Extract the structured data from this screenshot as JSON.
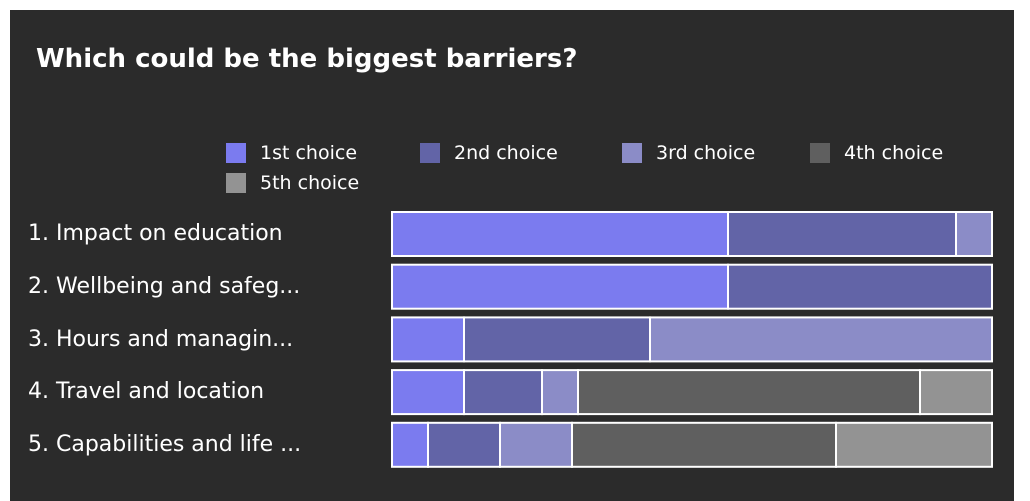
{
  "title": "Which could be the biggest barriers?",
  "colors": {
    "background": "#2b2b2b",
    "divider": "#ffffff"
  },
  "chart_data": {
    "type": "bar",
    "orientation": "horizontal",
    "stacking": "percent",
    "title": "Which could be the biggest barriers?",
    "legend_position": "top-right",
    "grid": false,
    "categories": [
      "1. Impact on education",
      "2. Wellbeing and safeg...",
      "3. Hours and managin...",
      "4. Travel and location",
      "5. Capabilities and life ..."
    ],
    "series": [
      {
        "name": "1st choice",
        "color": "#7b7bef",
        "values": [
          56,
          56,
          12,
          12,
          6
        ]
      },
      {
        "name": "2nd choice",
        "color": "#6264a7",
        "values": [
          38,
          44,
          31,
          13,
          12
        ]
      },
      {
        "name": "3rd choice",
        "color": "#8b8cc7",
        "values": [
          6,
          0,
          57,
          6,
          12
        ]
      },
      {
        "name": "4th choice",
        "color": "#5f5f5f",
        "values": [
          0,
          0,
          0,
          57,
          44
        ]
      },
      {
        "name": "5th choice",
        "color": "#939393",
        "values": [
          0,
          0,
          0,
          12,
          26
        ]
      }
    ]
  }
}
